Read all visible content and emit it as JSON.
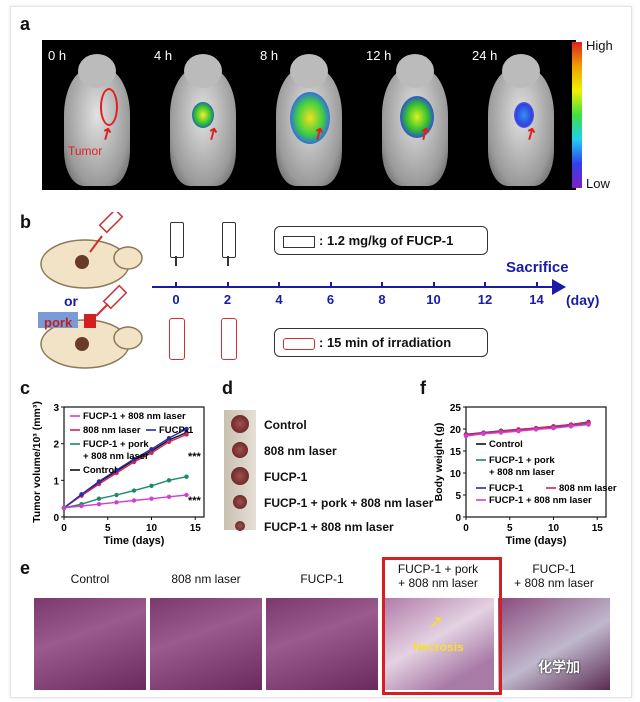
{
  "panel_labels": {
    "a": "a",
    "b": "b",
    "c": "c",
    "d": "d",
    "e": "e",
    "f": "f"
  },
  "panel_a": {
    "times": [
      "0 h",
      "4 h",
      "8 h",
      "12 h",
      "24 h"
    ],
    "tumor_label": "Tumor",
    "colorbar": {
      "high": "High",
      "low": "Low"
    }
  },
  "panel_b": {
    "or_label": "or",
    "pork_label": "pork",
    "sacrifice": "Sacrifice",
    "axis_unit": "(day)",
    "days": [
      "0",
      "2",
      "4",
      "6",
      "8",
      "10",
      "12",
      "14"
    ],
    "injection_legend": ": 1.2 mg/kg of FUCP-1",
    "irradiation_legend": ": 15 min of irradiation"
  },
  "panel_d": {
    "labels": [
      "Control",
      "808 nm laser",
      "FUCP-1",
      "FUCP-1 + pork + 808 nm laser",
      "FUCP-1 + 808 nm laser"
    ]
  },
  "panel_e": {
    "titles": [
      "Control",
      "808 nm laser",
      "FUCP-1",
      "FUCP-1 + pork\n+ 808 nm laser",
      "FUCP-1\n+ 808 nm laser"
    ],
    "necrosis": "Necrosis",
    "watermark": "化学加"
  },
  "chart_data": [
    {
      "id": "c",
      "type": "line",
      "xlabel": "Time (days)",
      "ylabel": "Tumor volume/10³ (mm³)",
      "xlim": [
        0,
        16
      ],
      "ylim": [
        0,
        3
      ],
      "xticks": [
        "0",
        "5",
        "10",
        "15"
      ],
      "yticks": [
        "0",
        "1",
        "2",
        "3"
      ],
      "x": [
        0,
        2,
        4,
        6,
        8,
        10,
        12,
        14
      ],
      "legend": [
        "FUCP-1 + 808 nm laser",
        "808 nm laser",
        "FUCP-1",
        "FUCP-1 + pork\n+ 808 nm laser",
        "Control"
      ],
      "series": [
        {
          "name": "Control",
          "color": "#111111",
          "values": [
            0.25,
            0.6,
            0.95,
            1.25,
            1.55,
            1.8,
            2.1,
            2.3
          ]
        },
        {
          "name": "808 nm laser",
          "color": "#d0245a",
          "values": [
            0.25,
            0.58,
            0.9,
            1.2,
            1.5,
            1.75,
            2.05,
            2.25
          ]
        },
        {
          "name": "FUCP-1",
          "color": "#2a2ab0",
          "values": [
            0.25,
            0.62,
            0.97,
            1.28,
            1.58,
            1.85,
            2.15,
            2.4
          ]
        },
        {
          "name": "FUCP-1 + pork + 808 nm laser",
          "color": "#1a8a6a",
          "values": [
            0.25,
            0.35,
            0.5,
            0.6,
            0.72,
            0.85,
            1.0,
            1.1
          ]
        },
        {
          "name": "FUCP-1 + 808 nm laser",
          "color": "#d040d0",
          "values": [
            0.25,
            0.3,
            0.35,
            0.4,
            0.45,
            0.5,
            0.55,
            0.6
          ]
        }
      ],
      "annotations": [
        "***",
        "***"
      ]
    },
    {
      "id": "f",
      "type": "line",
      "xlabel": "Time (days)",
      "ylabel": "Body weight (g)",
      "xlim": [
        0,
        16
      ],
      "ylim": [
        0,
        25
      ],
      "xticks": [
        "0",
        "5",
        "10",
        "15"
      ],
      "yticks": [
        "0",
        "5",
        "10",
        "15",
        "20",
        "25"
      ],
      "x": [
        0,
        2,
        4,
        6,
        8,
        10,
        12,
        14
      ],
      "legend": [
        "Control",
        "FUCP-1 + pork\n+ 808 nm laser",
        "FUCP-1",
        "808 nm laser",
        "FUCP-1 + 808 nm laser"
      ],
      "series": [
        {
          "name": "Control",
          "color": "#111111",
          "values": [
            18.5,
            19,
            19.3,
            19.6,
            20,
            20.3,
            20.7,
            21.2
          ]
        },
        {
          "name": "FUCP-1 + pork + 808 nm laser",
          "color": "#1a8a6a",
          "values": [
            18.6,
            19.1,
            19.4,
            19.8,
            20.1,
            20.5,
            20.9,
            21.3
          ]
        },
        {
          "name": "FUCP-1",
          "color": "#2a2ab0",
          "values": [
            18.8,
            19.2,
            19.6,
            19.9,
            20.2,
            20.6,
            21,
            21.6
          ]
        },
        {
          "name": "808 nm laser",
          "color": "#d0245a",
          "values": [
            18.7,
            19.1,
            19.5,
            19.9,
            20.2,
            20.6,
            21,
            21.5
          ]
        },
        {
          "name": "FUCP-1 + 808 nm laser",
          "color": "#d040d0",
          "values": [
            18.4,
            18.9,
            19.2,
            19.5,
            19.9,
            20.2,
            20.6,
            21
          ]
        }
      ]
    }
  ]
}
